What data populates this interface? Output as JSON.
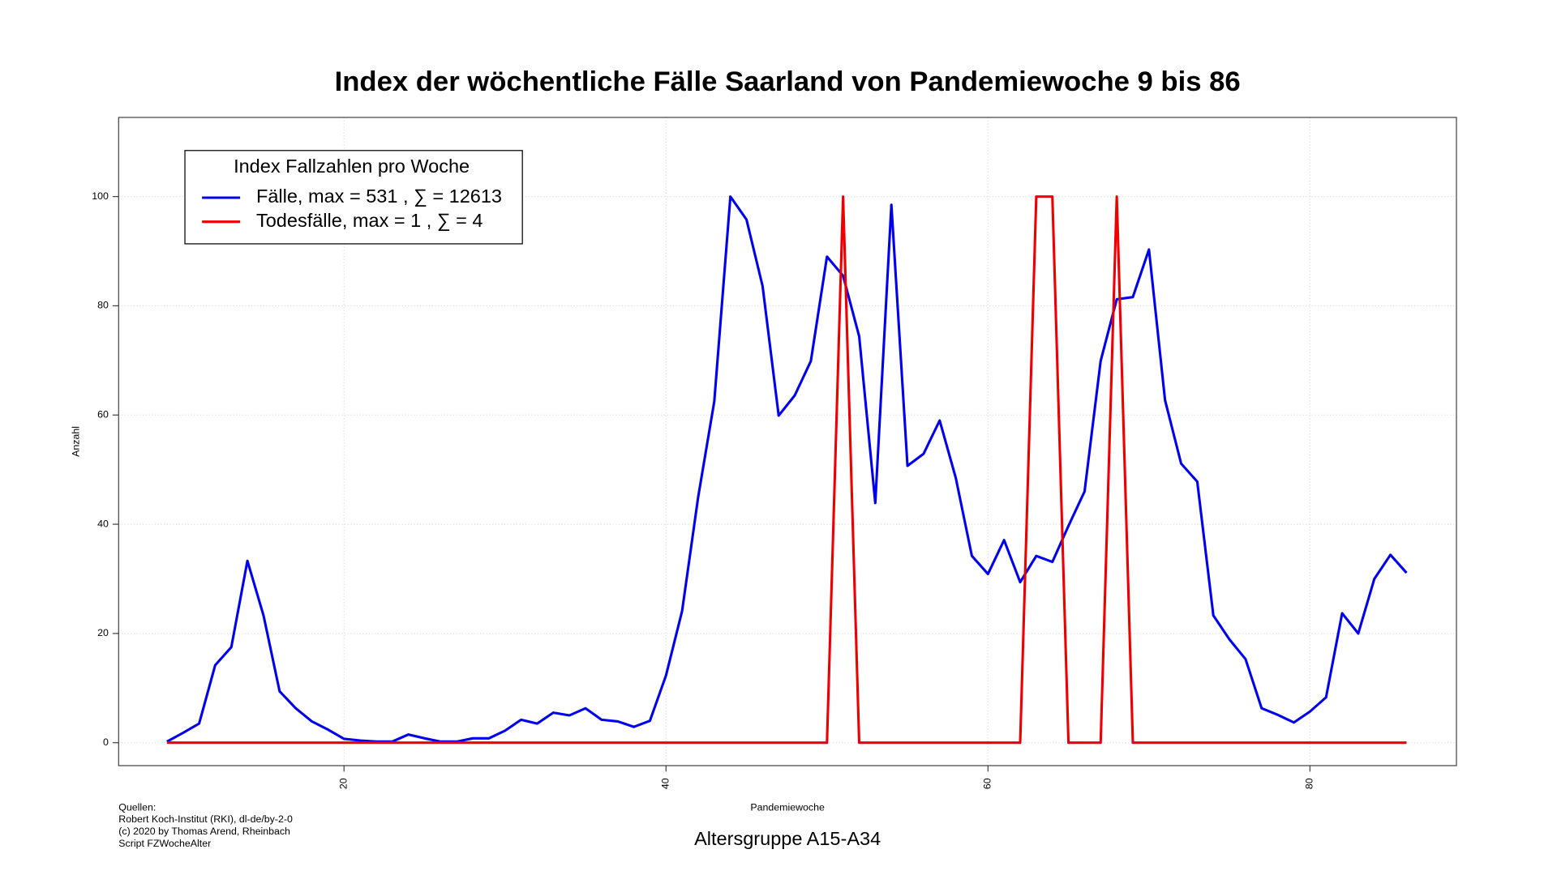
{
  "chart_data": {
    "type": "line",
    "title": "Index der wöchentliche Fälle Saarland von Pandemiewoche 9 bis 86",
    "subtitle": "Altersgruppe A15-A34",
    "x_label": "Pandemiewoche",
    "y_label": "Anzahl",
    "sources": [
      "Quellen:",
      "Robert Koch-Institut (RKI), dl-de/by-2-0",
      "(c) 2020 by Thomas Arend, Rheinbach",
      "Script FZWocheAlter"
    ],
    "legend_title": "Index Fallzahlen pro Woche",
    "legend_position": "top-left",
    "grid": true,
    "xlim": [
      6,
      89.1
    ],
    "ylim": [
      -4.2,
      114.5
    ],
    "xticks": [
      20,
      40,
      60,
      80
    ],
    "yticks": [
      0,
      20,
      40,
      60,
      80,
      100
    ],
    "x": [
      9,
      10,
      11,
      12,
      13,
      14,
      15,
      16,
      17,
      18,
      19,
      20,
      21,
      22,
      23,
      24,
      25,
      26,
      27,
      28,
      29,
      30,
      31,
      32,
      33,
      34,
      35,
      36,
      37,
      38,
      39,
      40,
      41,
      42,
      43,
      44,
      45,
      46,
      47,
      48,
      49,
      50,
      51,
      52,
      53,
      54,
      55,
      56,
      57,
      58,
      59,
      60,
      61,
      62,
      63,
      64,
      65,
      66,
      67,
      68,
      69,
      70,
      71,
      72,
      73,
      74,
      75,
      76,
      77,
      78,
      79,
      80,
      81,
      82,
      83,
      84,
      85,
      86
    ],
    "series": [
      {
        "name": "Fälle, max = 531 ,  ∑  = 12613",
        "color": "#0000ee",
        "values": [
          0.2,
          1.8,
          3.5,
          14.2,
          17.5,
          33.3,
          23.3,
          9.4,
          6.3,
          3.9,
          2.4,
          0.7,
          0.4,
          0.2,
          0.2,
          1.5,
          0.8,
          0.2,
          0.2,
          0.8,
          0.8,
          2.2,
          4.2,
          3.5,
          5.5,
          5.0,
          6.3,
          4.2,
          3.9,
          2.9,
          4.0,
          12.3,
          24.1,
          45.0,
          62.5,
          100,
          95.8,
          83.6,
          59.9,
          63.6,
          69.9,
          89.0,
          85.5,
          74.4,
          43.9,
          98.5,
          50.7,
          52.9,
          59.0,
          48.5,
          34.2,
          30.9,
          37.1,
          29.4,
          34.2,
          33.1,
          39.7,
          46.0,
          69.9,
          81.2,
          81.6,
          90.3,
          62.7,
          51.1,
          47.8,
          23.3,
          18.9,
          15.3,
          6.3,
          5.1,
          3.7,
          5.7,
          8.3,
          23.7,
          20.0,
          30.0,
          34.4,
          31.1
        ]
      },
      {
        "name": "Todesfälle, max = 1 ,  ∑  = 4",
        "color": "#ee0000",
        "values": [
          0,
          0,
          0,
          0,
          0,
          0,
          0,
          0,
          0,
          0,
          0,
          0,
          0,
          0,
          0,
          0,
          0,
          0,
          0,
          0,
          0,
          0,
          0,
          0,
          0,
          0,
          0,
          0,
          0,
          0,
          0,
          0,
          0,
          0,
          0,
          0,
          0,
          0,
          0,
          0,
          0,
          0,
          100,
          0,
          0,
          0,
          0,
          0,
          0,
          0,
          0,
          0,
          0,
          0,
          100,
          100,
          0,
          0,
          0,
          100,
          0,
          0,
          0,
          0,
          0,
          0,
          0,
          0,
          0,
          0,
          0,
          0,
          0,
          0,
          0,
          0,
          0,
          0
        ]
      }
    ]
  }
}
